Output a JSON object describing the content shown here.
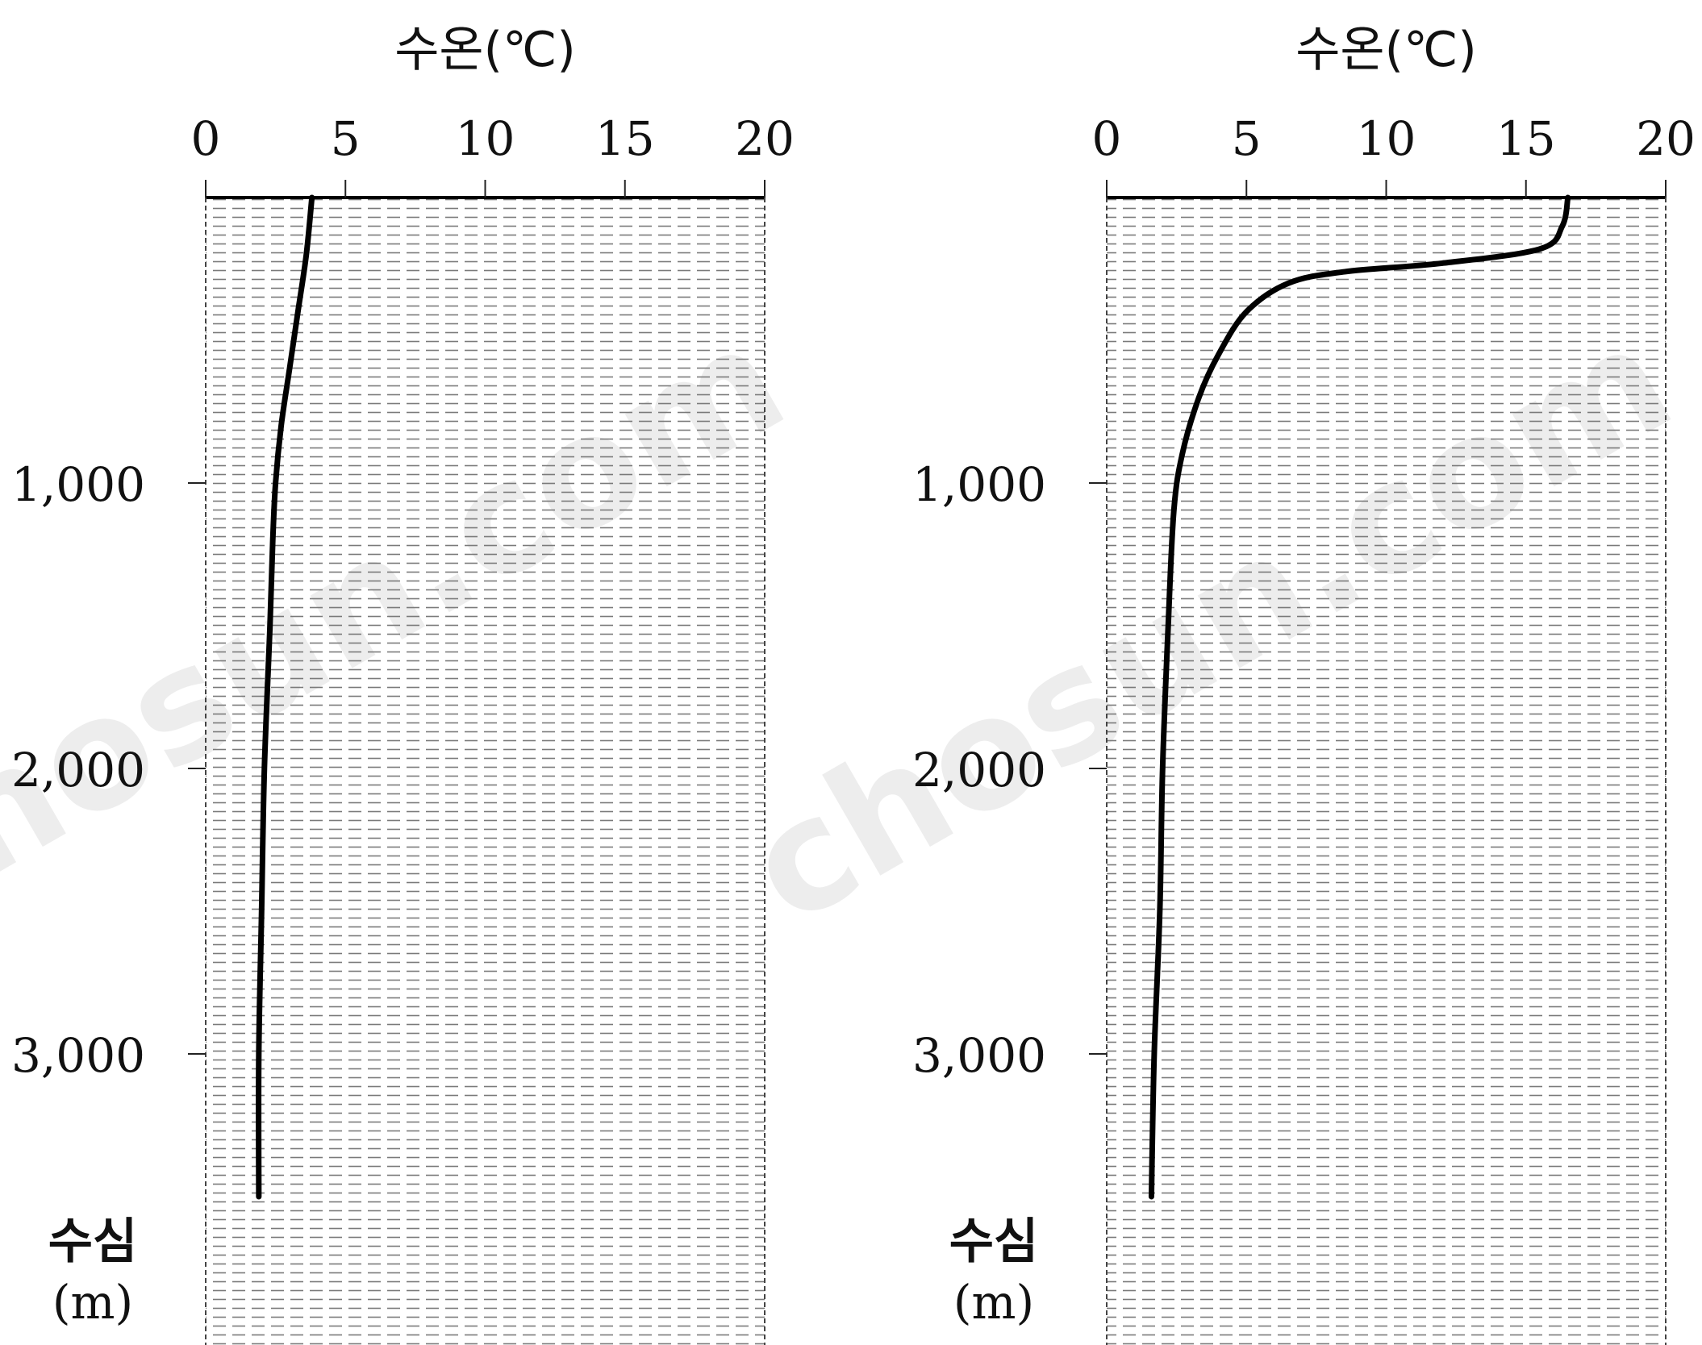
{
  "watermark": "chosun.com",
  "chart_data": [
    {
      "type": "line",
      "x_label": "수온(℃)",
      "y_label_line1": "수심",
      "y_label_line2": "(m)",
      "x_range": [
        0,
        20
      ],
      "x_ticks": [
        0,
        5,
        10,
        15,
        20
      ],
      "y_range": [
        0,
        4500
      ],
      "y_ticks": [
        1000,
        2000,
        3000
      ],
      "y_tick_labels": [
        "1,000",
        "2,000",
        "3,000"
      ],
      "y_inverted": true,
      "grid": false,
      "background": "dashed-horizontal-hatch",
      "x": [
        3.8,
        3.6,
        3.3,
        3.0,
        2.7,
        2.5,
        2.4,
        2.3,
        2.1,
        2.0,
        1.9,
        1.9
      ],
      "y": [
        0,
        200,
        400,
        600,
        800,
        1000,
        1200,
        1500,
        2000,
        2500,
        3000,
        3500
      ]
    },
    {
      "type": "line",
      "x_label": "수온(℃)",
      "y_label_line1": "수심",
      "y_label_line2": "(m)",
      "x_range": [
        0,
        20
      ],
      "x_ticks": [
        0,
        5,
        10,
        15,
        20
      ],
      "y_range": [
        0,
        4500
      ],
      "y_ticks": [
        1000,
        2000,
        3000
      ],
      "y_tick_labels": [
        "1,000",
        "2,000",
        "3,000"
      ],
      "y_inverted": true,
      "grid": false,
      "background": "dashed-horizontal-hatch",
      "x": [
        16.5,
        16.3,
        15.5,
        12.0,
        8.5,
        6.5,
        5.0,
        4.0,
        3.3,
        2.7,
        2.4,
        2.2,
        2.0,
        1.9,
        1.7,
        1.6
      ],
      "y": [
        0,
        100,
        180,
        230,
        260,
        300,
        400,
        550,
        700,
        900,
        1100,
        1500,
        2000,
        2500,
        3000,
        3500
      ]
    }
  ]
}
